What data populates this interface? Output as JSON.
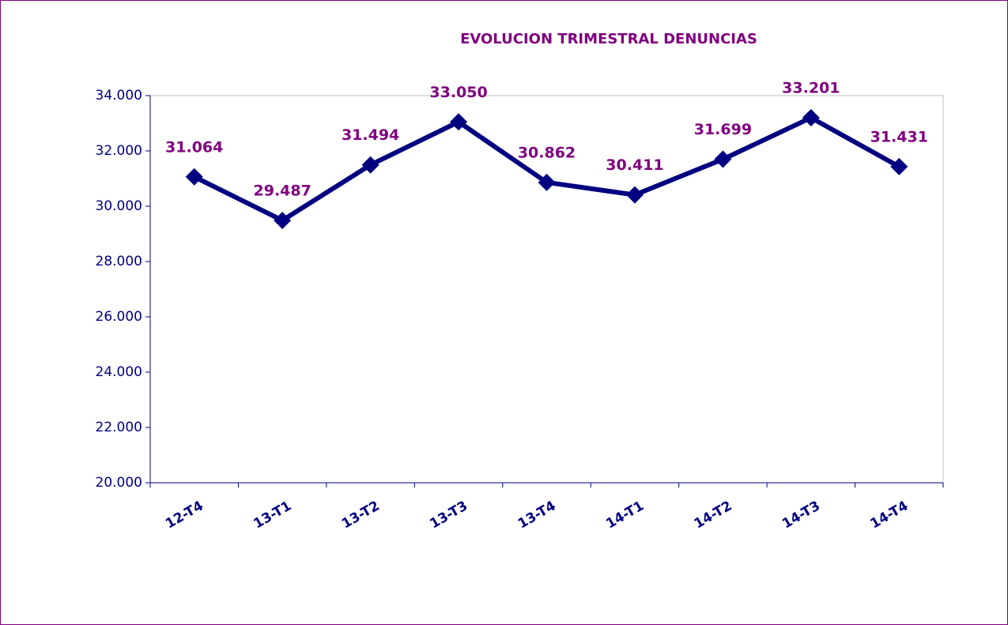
{
  "chart_data": {
    "type": "line",
    "title": "EVOLUCION TRIMESTRAL DENUNCIAS",
    "categories": [
      "12-T4",
      "13-T1",
      "13-T2",
      "13-T3",
      "13-T4",
      "14-T1",
      "14-T2",
      "14-T3",
      "14-T4"
    ],
    "series": [
      {
        "name": "Denuncias",
        "color": "#000080",
        "values": [
          31064,
          29487,
          31494,
          33050,
          30862,
          30411,
          31699,
          33201,
          31431
        ],
        "value_labels": [
          "31.064",
          "29.487",
          "31.494",
          "33.050",
          "30.862",
          "30.411",
          "31.699",
          "33.201",
          "31.431"
        ]
      }
    ],
    "ylim": [
      20000,
      34000
    ],
    "yticks": [
      {
        "value": 20000,
        "label": "20.000"
      },
      {
        "value": 22000,
        "label": "22.000"
      },
      {
        "value": 24000,
        "label": "24.000"
      },
      {
        "value": 26000,
        "label": "26.000"
      },
      {
        "value": 28000,
        "label": "28.000"
      },
      {
        "value": 30000,
        "label": "30.000"
      },
      {
        "value": 32000,
        "label": "32.000"
      },
      {
        "value": 34000,
        "label": "34.000"
      }
    ],
    "grid": false
  }
}
